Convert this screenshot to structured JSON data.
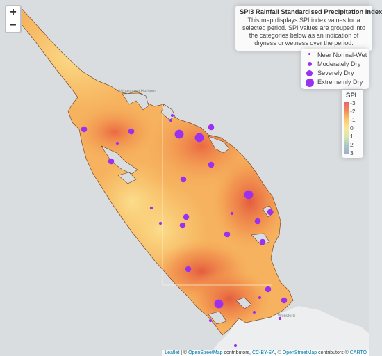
{
  "map": {
    "zoom_in": "+",
    "zoom_out": "−",
    "place_labels": [
      "Whangarei Harbour",
      "Wellsford"
    ]
  },
  "info": {
    "title": "SPI3 Rainfall Standardised Precipitation Index",
    "description": "This map displays SPI index values for a selected period. SPI values are grouped into the categories below as an indication of dryness or wetness over the period."
  },
  "legend": {
    "items": [
      {
        "label": "Near Normal-Wet",
        "size": 3
      },
      {
        "label": "Moderately Dry",
        "size": 6
      },
      {
        "label": "Severely Dry",
        "size": 9
      },
      {
        "label": "Extrememly Dry",
        "size": 12
      }
    ],
    "marker_color": "#9b30f0"
  },
  "scale": {
    "title": "SPI",
    "ticks": [
      "-3",
      "-2",
      "-1",
      "0",
      "1",
      "2",
      "3"
    ],
    "colors": [
      "#e8636d",
      "#f08a55",
      "#f8c76a",
      "#fbe79a",
      "#d9e6b0",
      "#a9c7c6",
      "#9aaed0"
    ]
  },
  "attribution": {
    "leaflet": "Leaflet",
    "sep1": " | © ",
    "osm1": "OpenStreetMap",
    "contrib1": " contributors, ",
    "license": "CC-BY-SA",
    "sep2": ", © ",
    "osm2": "OpenStreetMap",
    "contrib2": " contributors © ",
    "carto": "CARTO"
  },
  "stations": [
    {
      "category": "Near Normal-Wet"
    },
    {
      "category": "Moderately Dry"
    },
    {
      "category": "Moderately Dry"
    },
    {
      "category": "Near Normal-Wet"
    },
    {
      "category": "Severely Dry"
    },
    {
      "category": "Severely Dry"
    },
    {
      "category": "Moderately Dry"
    },
    {
      "category": "Near Normal-Wet"
    },
    {
      "category": "Moderately Dry"
    },
    {
      "category": "Moderately Dry"
    },
    {
      "category": "Moderately Dry"
    },
    {
      "category": "Severely Dry"
    },
    {
      "category": "Near Normal-Wet"
    },
    {
      "category": "Near Normal-Wet"
    },
    {
      "category": "Moderately Dry"
    },
    {
      "category": "Near Normal-Wet"
    },
    {
      "category": "Moderately Dry"
    },
    {
      "category": "Moderately Dry"
    },
    {
      "category": "Moderately Dry"
    },
    {
      "category": "Moderately Dry"
    },
    {
      "category": "Moderately Dry"
    },
    {
      "category": "Moderately Dry"
    },
    {
      "category": "Moderately Dry"
    },
    {
      "category": "Near Normal-Wet"
    },
    {
      "category": "Severely Dry"
    },
    {
      "category": "Near Normal-Wet"
    },
    {
      "category": "Moderately Dry"
    },
    {
      "category": "Near Normal-Wet"
    },
    {
      "category": "Near Normal-Wet"
    },
    {
      "category": "Near Normal-Wet"
    },
    {
      "category": "Near Normal-Wet"
    }
  ]
}
